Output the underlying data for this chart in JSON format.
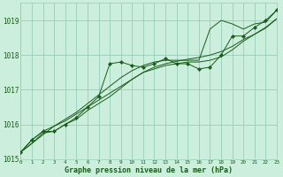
{
  "title": "Graphe pression niveau de la mer (hPa)",
  "x_hours": [
    0,
    1,
    2,
    3,
    4,
    5,
    6,
    7,
    8,
    9,
    10,
    11,
    12,
    13,
    14,
    15,
    16,
    17,
    18,
    19,
    20,
    21,
    22,
    23
  ],
  "line_actual": [
    1015.2,
    1015.55,
    1015.8,
    1015.8,
    1016.0,
    1016.2,
    1016.5,
    1016.8,
    1017.75,
    1017.8,
    1017.7,
    1017.65,
    1017.75,
    1017.9,
    1017.75,
    1017.75,
    1017.6,
    1017.65,
    1018.0,
    1018.55,
    1018.55,
    1018.8,
    1019.0,
    1019.3
  ],
  "line_min": [
    1015.2,
    1015.45,
    1015.75,
    1015.8,
    1016.0,
    1016.15,
    1016.4,
    1016.6,
    1016.8,
    1017.05,
    1017.3,
    1017.5,
    1017.6,
    1017.7,
    1017.75,
    1017.8,
    1017.8,
    1017.85,
    1017.95,
    1018.15,
    1018.4,
    1018.6,
    1018.8,
    1019.05
  ],
  "line_max": [
    1015.2,
    1015.55,
    1015.8,
    1015.95,
    1016.15,
    1016.35,
    1016.6,
    1016.85,
    1017.1,
    1017.35,
    1017.55,
    1017.7,
    1017.8,
    1017.85,
    1017.85,
    1017.85,
    1017.85,
    1018.75,
    1019.0,
    1018.9,
    1018.75,
    1018.9,
    1018.95,
    1019.3
  ],
  "line_linear": [
    1015.2,
    1015.45,
    1015.7,
    1015.95,
    1016.1,
    1016.3,
    1016.5,
    1016.7,
    1016.9,
    1017.1,
    1017.3,
    1017.5,
    1017.65,
    1017.75,
    1017.82,
    1017.88,
    1017.93,
    1018.0,
    1018.1,
    1018.25,
    1018.45,
    1018.6,
    1018.78,
    1019.05
  ],
  "bg_color": "#cceedd",
  "line_color": "#1a5c1a",
  "grid_color": "#99ccbb",
  "text_color": "#1a5c1a",
  "ylim": [
    1015.0,
    1019.5
  ],
  "yticks": [
    1015,
    1016,
    1017,
    1018,
    1019
  ],
  "xlim": [
    0,
    23
  ]
}
